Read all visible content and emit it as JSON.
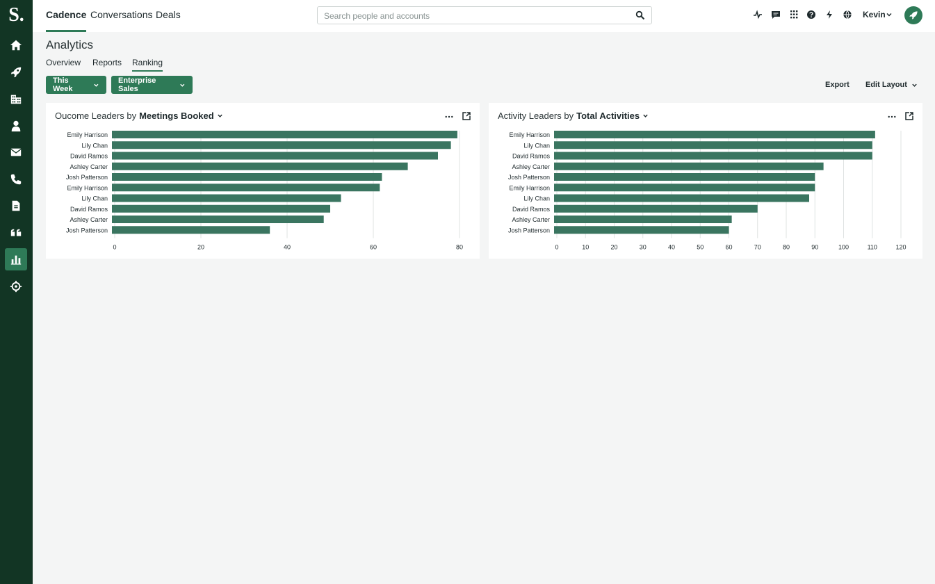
{
  "app": {
    "logo_letter": "S."
  },
  "sidebar": {
    "items": [
      {
        "name": "home-icon"
      },
      {
        "name": "rocket-icon"
      },
      {
        "name": "building-icon"
      },
      {
        "name": "person-icon"
      },
      {
        "name": "mail-icon"
      },
      {
        "name": "phone-icon"
      },
      {
        "name": "document-icon"
      },
      {
        "name": "quote-icon"
      },
      {
        "name": "analytics-icon",
        "active": true
      },
      {
        "name": "crosshair-icon"
      }
    ]
  },
  "topnav": {
    "tabs": [
      {
        "label": "Cadence",
        "active": true
      },
      {
        "label": "Conversations"
      },
      {
        "label": "Deals"
      }
    ],
    "search_placeholder": "Search people and accounts",
    "icons": [
      "activity-icon",
      "chat-icon",
      "apps-grid-icon",
      "help-icon",
      "bolt-icon",
      "globe-icon"
    ],
    "user_name": "Kevin"
  },
  "page": {
    "title": "Analytics",
    "subtabs": [
      {
        "label": "Overview"
      },
      {
        "label": "Reports"
      },
      {
        "label": "Ranking",
        "active": true
      }
    ],
    "filters": {
      "period": "This Week",
      "team": "Enterprise Sales"
    },
    "actions": {
      "export": "Export",
      "edit_layout": "Edit Layout"
    }
  },
  "colors": {
    "sidebar_bg": "#123524",
    "accent": "#2e7a57",
    "bar": "#3a7560"
  },
  "chart_data": [
    {
      "type": "bar",
      "orientation": "horizontal",
      "title_prefix": "Oucome Leaders by",
      "title_metric": "Meetings Booked",
      "categories": [
        "Emily Harrison",
        "Lily Chan",
        "David Ramos",
        "Ashley Carter",
        "Josh Patterson",
        "Emily Harrison",
        "Lily Chan",
        "David Ramos",
        "Ashley Carter",
        "Josh Patterson"
      ],
      "values": [
        79.5,
        78,
        75,
        68,
        62,
        61.5,
        52.5,
        50,
        48.5,
        36
      ],
      "xlim": [
        0,
        80
      ],
      "xticks": [
        0,
        20,
        40,
        60,
        80
      ],
      "grid": true
    },
    {
      "type": "bar",
      "orientation": "horizontal",
      "title_prefix": "Activity Leaders by",
      "title_metric": "Total Activities",
      "categories": [
        "Emily Harrison",
        "Lily Chan",
        "David Ramos",
        "Ashley Carter",
        "Josh Patterson",
        "Emily Harrison",
        "Lily Chan",
        "David Ramos",
        "Ashley Carter",
        "Josh Patterson"
      ],
      "values": [
        111,
        110,
        110,
        93,
        90,
        90,
        88,
        70,
        61,
        60
      ],
      "xlim": [
        0,
        120
      ],
      "xticks": [
        0,
        10,
        20,
        30,
        40,
        50,
        60,
        70,
        80,
        90,
        100,
        110,
        120
      ],
      "grid": true
    }
  ]
}
